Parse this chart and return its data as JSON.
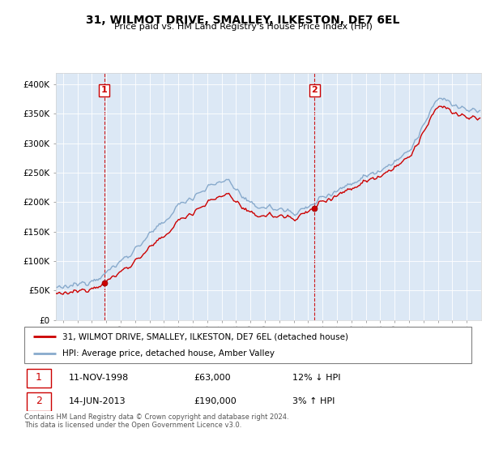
{
  "title": "31, WILMOT DRIVE, SMALLEY, ILKESTON, DE7 6EL",
  "subtitle": "Price paid vs. HM Land Registry's House Price Index (HPI)",
  "ylabel_ticks": [
    "£0",
    "£50K",
    "£100K",
    "£150K",
    "£200K",
    "£250K",
    "£300K",
    "£350K",
    "£400K"
  ],
  "ytick_values": [
    0,
    50000,
    100000,
    150000,
    200000,
    250000,
    300000,
    350000,
    400000
  ],
  "ylim": [
    0,
    420000
  ],
  "sale1": {
    "date_str": "11-NOV-1998",
    "price": 63000,
    "label": "1",
    "hpi_rel": "12% ↓ HPI"
  },
  "sale2": {
    "date_str": "14-JUN-2013",
    "price": 190000,
    "label": "2",
    "hpi_rel": "3% ↑ HPI"
  },
  "sale1_x": 1998.86,
  "sale2_x": 2013.45,
  "legend_property": "31, WILMOT DRIVE, SMALLEY, ILKESTON, DE7 6EL (detached house)",
  "legend_hpi": "HPI: Average price, detached house, Amber Valley",
  "footer": "Contains HM Land Registry data © Crown copyright and database right 2024.\nThis data is licensed under the Open Government Licence v3.0.",
  "color_property": "#cc0000",
  "color_hpi": "#88aacc",
  "color_vline": "#cc0000",
  "background_plot": "#dce8f5",
  "background_fig": "#ffffff"
}
